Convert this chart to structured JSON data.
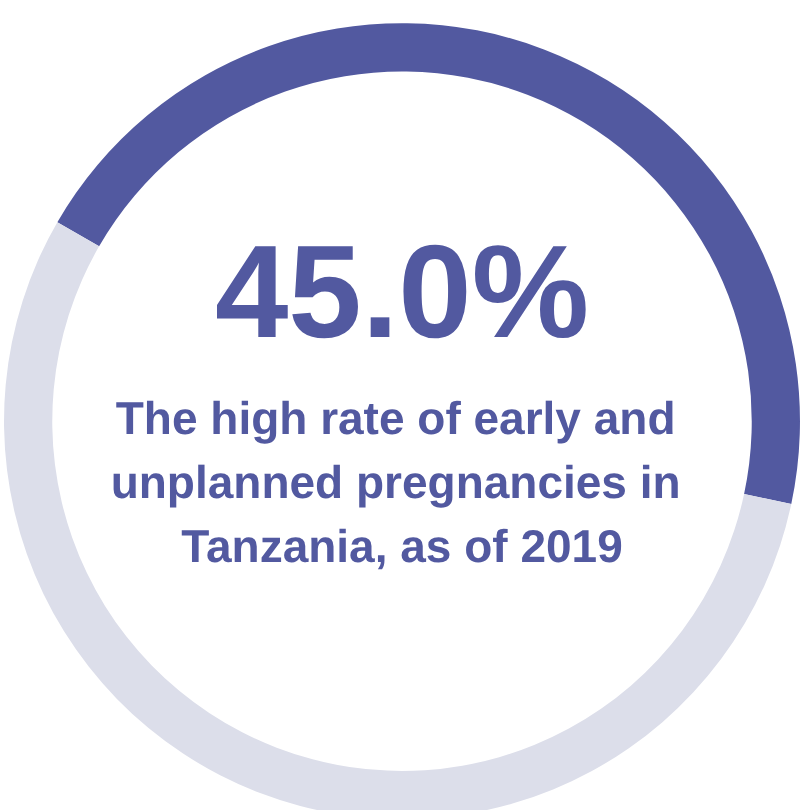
{
  "chart_data": {
    "type": "donut",
    "title": "The high rate of early and unplanned pregnancies in Tanzania, as of 2019",
    "categories": [
      null,
      null
    ],
    "values": [
      45,
      55
    ],
    "colors": [
      "#5259a0",
      "#dcdeea"
    ],
    "value_labels": [
      "45.0%",
      null
    ]
  }
}
